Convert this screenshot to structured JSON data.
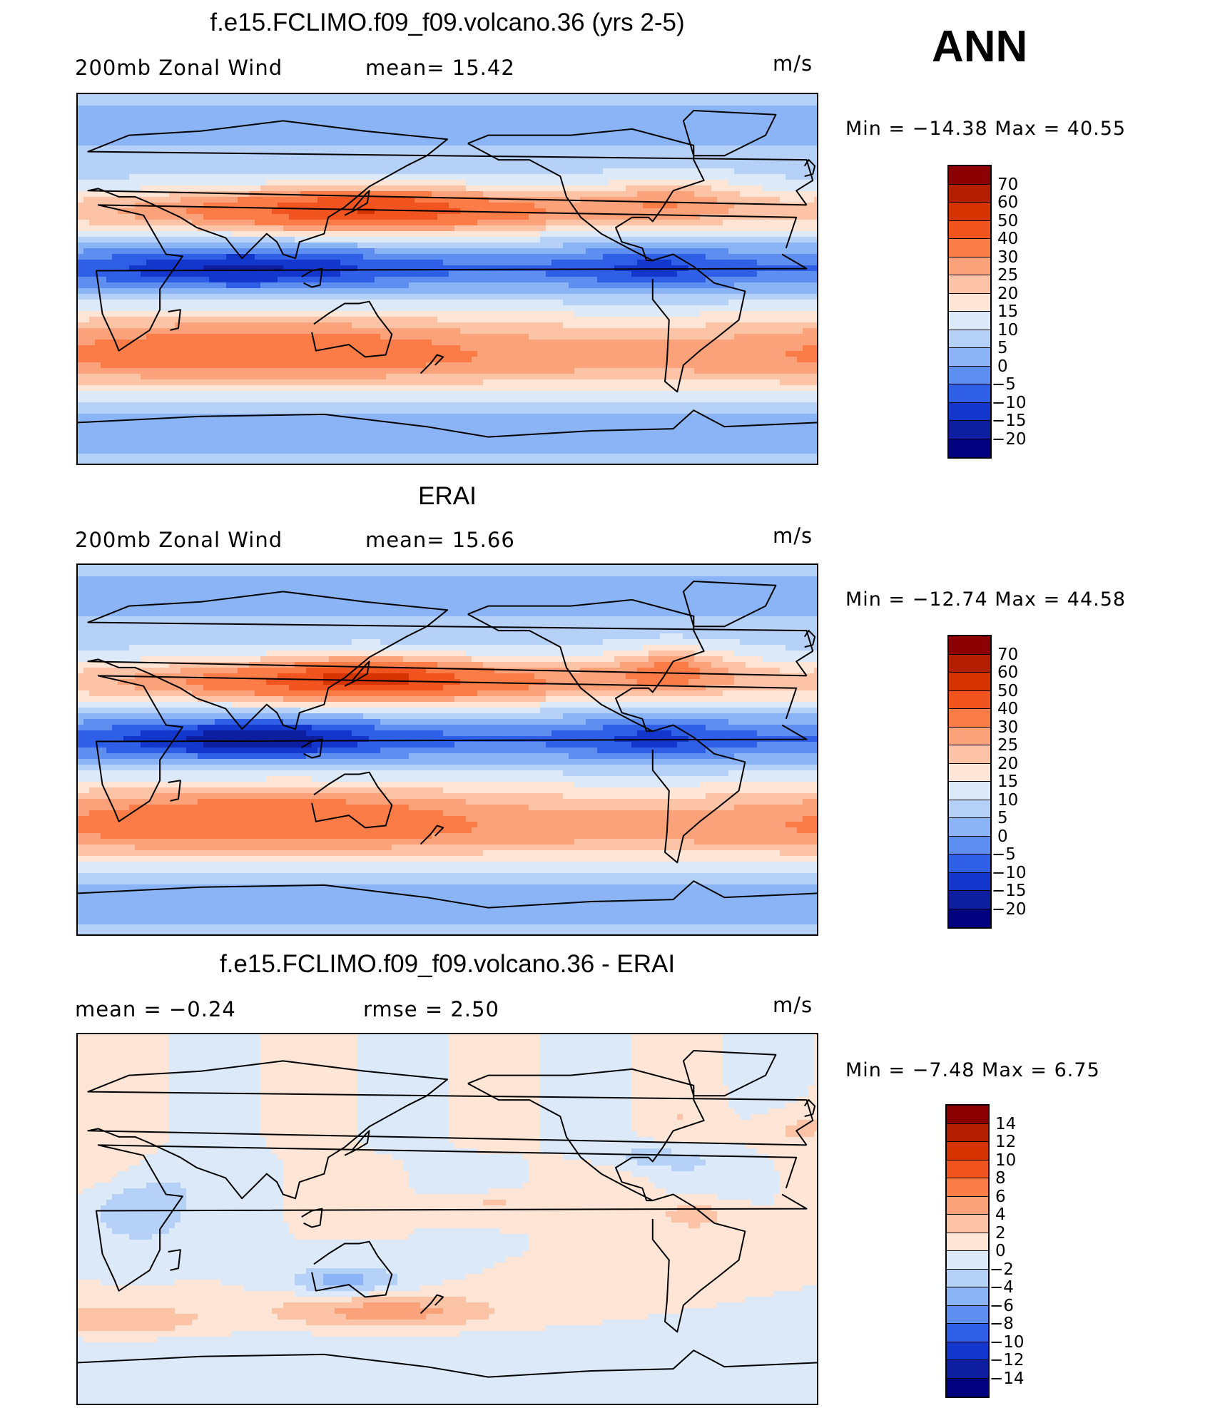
{
  "season": "ANN",
  "panels": [
    {
      "title": "f.e15.FCLIMO.f09_f09.volcano.36 (yrs 2-5)",
      "left_label": "200mb  Zonal  Wind",
      "center_label": "mean=   15.42",
      "units": "m/s",
      "min_max": "Min  =  −14.38  Max  =    40.55",
      "levels": [
        "70",
        "60",
        "50",
        "40",
        "30",
        "25",
        "20",
        "15",
        "10",
        "5",
        "0",
        "−5",
        "−10",
        "−15",
        "−20"
      ],
      "colors": [
        "#8b0000",
        "#b31f00",
        "#d53400",
        "#f25420",
        "#fb7c46",
        "#fca27a",
        "#fdc3a6",
        "#fee5d6",
        "#dbe9f8",
        "#b5d1f7",
        "#8ab4f5",
        "#5e8ef0",
        "#2f5fe6",
        "#1336cc",
        "#0d1fa0",
        "#000080"
      ],
      "field": "model"
    },
    {
      "title": "ERAI",
      "left_label": "200mb  Zonal  Wind",
      "center_label": "mean=   15.66",
      "units": "m/s",
      "min_max": "Min  =  −12.74  Max  =    44.58",
      "levels": [
        "70",
        "60",
        "50",
        "40",
        "30",
        "25",
        "20",
        "15",
        "10",
        "5",
        "0",
        "−5",
        "−10",
        "−15",
        "−20"
      ],
      "colors": [
        "#8b0000",
        "#b31f00",
        "#d53400",
        "#f25420",
        "#fb7c46",
        "#fca27a",
        "#fdc3a6",
        "#fee5d6",
        "#dbe9f8",
        "#b5d1f7",
        "#8ab4f5",
        "#5e8ef0",
        "#2f5fe6",
        "#1336cc",
        "#0d1fa0",
        "#000080"
      ],
      "field": "obs"
    },
    {
      "title": "f.e15.FCLIMO.f09_f09.volcano.36 - ERAI",
      "left_label": "mean  =    −0.24",
      "center_label": "rmse  =     2.50",
      "units": "m/s",
      "min_max": "Min  =    −7.48  Max  =      6.75",
      "levels": [
        "14",
        "12",
        "10",
        "8",
        "6",
        "4",
        "2",
        "0",
        "−2",
        "−4",
        "−6",
        "−8",
        "−10",
        "−12",
        "−14"
      ],
      "colors": [
        "#8b0000",
        "#b31f00",
        "#d53400",
        "#f25420",
        "#fb7c46",
        "#fca27a",
        "#fdc3a6",
        "#fee5d6",
        "#dbe9f8",
        "#b5d1f7",
        "#8ab4f5",
        "#5e8ef0",
        "#2f5fe6",
        "#1336cc",
        "#0d1fa0",
        "#000080"
      ],
      "field": "diff"
    }
  ]
}
